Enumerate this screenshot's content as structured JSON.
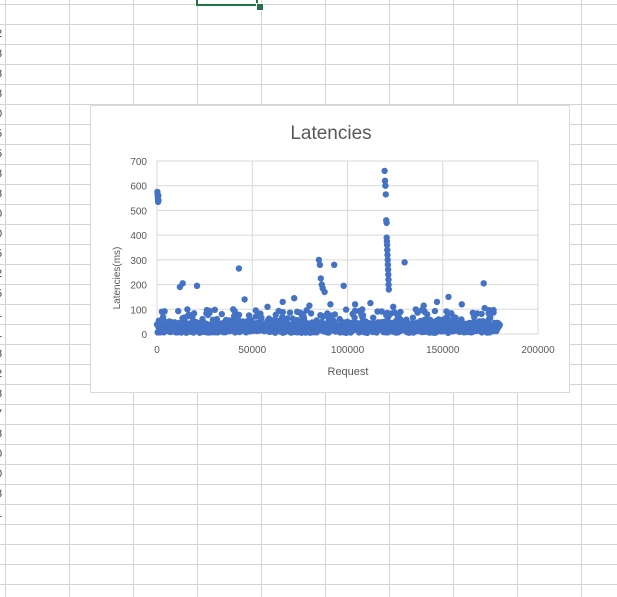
{
  "sheet": {
    "row_labels": [
      "2",
      "3",
      "3",
      "3",
      "0",
      "5",
      "5",
      "3",
      "3",
      "0",
      "0",
      "5",
      "2",
      "5",
      "1",
      "1",
      "3",
      "2",
      "3",
      "7",
      "3",
      "0",
      "0",
      "3",
      "1"
    ]
  },
  "chart_data": {
    "type": "scatter",
    "title": "Latencies",
    "xlabel": "Request",
    "ylabel": "Latencies(ms)",
    "xlim": [
      0,
      200000
    ],
    "ylim": [
      0,
      700
    ],
    "xticks": [
      0,
      50000,
      100000,
      150000,
      200000
    ],
    "yticks": [
      0,
      100,
      200,
      300,
      400,
      500,
      600,
      700
    ],
    "grid": true,
    "legend": "none",
    "marker_color": "#4472c4",
    "series": [
      {
        "points": [
          [
            200,
            575
          ],
          [
            300,
            565
          ],
          [
            400,
            555
          ],
          [
            500,
            545
          ],
          [
            600,
            535
          ],
          [
            700,
            560
          ],
          [
            800,
            540
          ],
          [
            12000,
            190
          ],
          [
            13500,
            205
          ],
          [
            21000,
            195
          ],
          [
            43000,
            265
          ],
          [
            85000,
            300
          ],
          [
            85500,
            280
          ],
          [
            86000,
            225
          ],
          [
            86500,
            200
          ],
          [
            87000,
            185
          ],
          [
            88000,
            170
          ],
          [
            93000,
            280
          ],
          [
            98000,
            195
          ],
          [
            119500,
            660
          ],
          [
            119700,
            620
          ],
          [
            119900,
            600
          ],
          [
            120100,
            565
          ],
          [
            120300,
            460
          ],
          [
            120500,
            450
          ],
          [
            120600,
            390
          ],
          [
            120700,
            375
          ],
          [
            120800,
            360
          ],
          [
            120900,
            340
          ],
          [
            121000,
            320
          ],
          [
            121100,
            300
          ],
          [
            121200,
            280
          ],
          [
            121300,
            260
          ],
          [
            121400,
            240
          ],
          [
            121500,
            220
          ],
          [
            121600,
            200
          ],
          [
            121700,
            180
          ],
          [
            130000,
            290
          ],
          [
            171500,
            205
          ],
          [
            40000,
            100
          ],
          [
            46000,
            140
          ],
          [
            58000,
            110
          ],
          [
            66000,
            130
          ],
          [
            72000,
            145
          ],
          [
            80000,
            115
          ],
          [
            91000,
            120
          ],
          [
            104000,
            120
          ],
          [
            112000,
            125
          ],
          [
            124000,
            110
          ],
          [
            140000,
            115
          ],
          [
            147000,
            130
          ],
          [
            153000,
            150
          ],
          [
            160000,
            120
          ],
          [
            172000,
            105
          ]
        ],
        "band": {
          "x_range": [
            0,
            180000
          ],
          "y_base": [
            5,
            45
          ],
          "count": 900
        }
      }
    ]
  }
}
